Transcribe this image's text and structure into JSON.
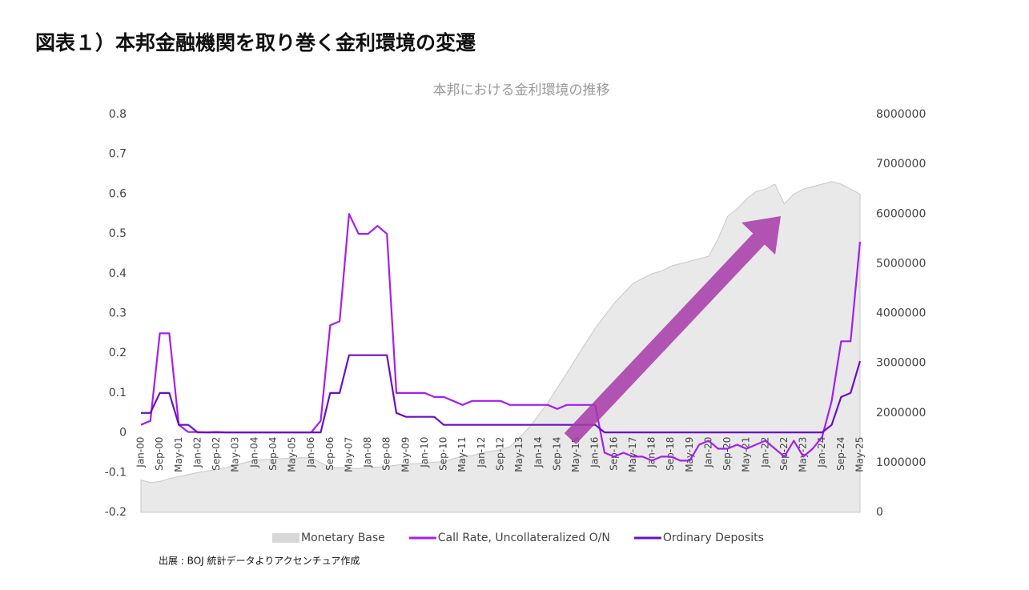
{
  "header": {
    "title": "図表１）本邦金融機関を取り巻く金利環境の変遷"
  },
  "chart_data": {
    "type": "line",
    "title": "本邦における金利環境の推移",
    "categories": [
      "Jan-00",
      null,
      "Sep-00",
      null,
      "May-01",
      null,
      "Jan-02",
      null,
      "Sep-02",
      null,
      "May-03",
      null,
      "Jan-04",
      null,
      "Sep-04",
      null,
      "May-05",
      null,
      "Jan-06",
      null,
      "Sep-06",
      null,
      "May-07",
      null,
      "Jan-08",
      null,
      "Sep-08",
      null,
      "May-09",
      null,
      "Jan-10",
      null,
      "Sep-10",
      null,
      "May-11",
      null,
      "Jan-12",
      null,
      "Sep-12",
      null,
      "May-13",
      null,
      "Jan-14",
      null,
      "Sep-14",
      null,
      "May-15",
      null,
      "Jan-16",
      null,
      "Sep-16",
      null,
      "May-17",
      null,
      "Jan-18",
      null,
      "Sep-18",
      null,
      "May-19",
      null,
      "Jan-20",
      null,
      "Sep-20",
      null,
      "May-21",
      null,
      "Jan-22",
      null,
      "Sep-22",
      null,
      "May-23",
      null,
      "Jan-24",
      null,
      "Sep-24",
      null,
      "May-25"
    ],
    "series": [
      {
        "name": "Monetary Base",
        "type": "area",
        "axis": "y2",
        "color": "#e9e9e9",
        "values": [
          650000,
          600000,
          620000,
          680000,
          720000,
          760000,
          800000,
          830000,
          860000,
          900000,
          950000,
          1000000,
          1050000,
          1060000,
          1070000,
          1080000,
          1090000,
          1100000,
          1100000,
          1000000,
          900000,
          900000,
          890000,
          880000,
          900000,
          910000,
          920000,
          950000,
          970000,
          980000,
          1000000,
          1010000,
          1020000,
          1080000,
          1130000,
          1140000,
          1200000,
          1230000,
          1260000,
          1320000,
          1500000,
          1700000,
          1950000,
          2200000,
          2500000,
          2800000,
          3100000,
          3400000,
          3700000,
          3950000,
          4200000,
          4400000,
          4600000,
          4700000,
          4800000,
          4850000,
          4950000,
          5000000,
          5050000,
          5100000,
          5150000,
          5500000,
          5950000,
          6100000,
          6300000,
          6450000,
          6500000,
          6600000,
          6200000,
          6400000,
          6500000,
          6550000,
          6600000,
          6650000,
          6600000,
          6500000,
          6400000
        ]
      },
      {
        "name": "Call Rate, Uncollateralized O/N",
        "color": "#a41ff0",
        "values": [
          0.02,
          0.03,
          0.25,
          0.25,
          0.02,
          0.002,
          0.002,
          0.001,
          0.002,
          0.001,
          0.001,
          0.001,
          0.001,
          0.001,
          0.001,
          0.001,
          0.001,
          0.001,
          0.001,
          0.03,
          0.27,
          0.28,
          0.55,
          0.5,
          0.5,
          0.52,
          0.5,
          0.1,
          0.1,
          0.1,
          0.1,
          0.09,
          0.09,
          0.08,
          0.07,
          0.08,
          0.08,
          0.08,
          0.08,
          0.07,
          0.07,
          0.07,
          0.07,
          0.07,
          0.06,
          0.07,
          0.07,
          0.07,
          0.07,
          -0.05,
          -0.06,
          -0.05,
          -0.06,
          -0.06,
          -0.07,
          -0.06,
          -0.06,
          -0.07,
          -0.07,
          -0.03,
          -0.02,
          -0.04,
          -0.04,
          -0.03,
          -0.04,
          -0.03,
          -0.02,
          -0.04,
          -0.06,
          -0.02,
          -0.06,
          -0.04,
          -0.01,
          0.08,
          0.23,
          0.23,
          0.48
        ]
      },
      {
        "name": "Ordinary Deposits",
        "color": "#6a0fc4",
        "values": [
          0.05,
          0.05,
          0.1,
          0.1,
          0.02,
          0.02,
          0.001,
          0.001,
          0.001,
          0.001,
          0.001,
          0.001,
          0.001,
          0.001,
          0.001,
          0.001,
          0.001,
          0.001,
          0.001,
          0.001,
          0.1,
          0.1,
          0.195,
          0.195,
          0.195,
          0.195,
          0.195,
          0.05,
          0.04,
          0.04,
          0.04,
          0.04,
          0.02,
          0.02,
          0.02,
          0.02,
          0.02,
          0.02,
          0.02,
          0.02,
          0.02,
          0.02,
          0.02,
          0.02,
          0.02,
          0.02,
          0.02,
          0.02,
          0.02,
          0.001,
          0.001,
          0.001,
          0.001,
          0.001,
          0.001,
          0.001,
          0.001,
          0.001,
          0.001,
          0.001,
          0.001,
          0.001,
          0.001,
          0.001,
          0.001,
          0.001,
          0.001,
          0.001,
          0.001,
          0.001,
          0.001,
          0.001,
          0.001,
          0.02,
          0.09,
          0.1,
          0.18
        ]
      }
    ],
    "ylim": [
      -0.2,
      0.8
    ],
    "yticks": [
      -0.2,
      -0.1,
      0,
      0.1,
      0.2,
      0.3,
      0.4,
      0.5,
      0.6,
      0.7,
      0.8
    ],
    "y2lim": [
      0,
      8000000
    ],
    "y2ticks": [
      0,
      1000000,
      2000000,
      3000000,
      4000000,
      5000000,
      6000000,
      7000000,
      8000000
    ],
    "legend": "bottom"
  },
  "source": "出展 : BOJ 統計データよりアクセンチュア作成"
}
